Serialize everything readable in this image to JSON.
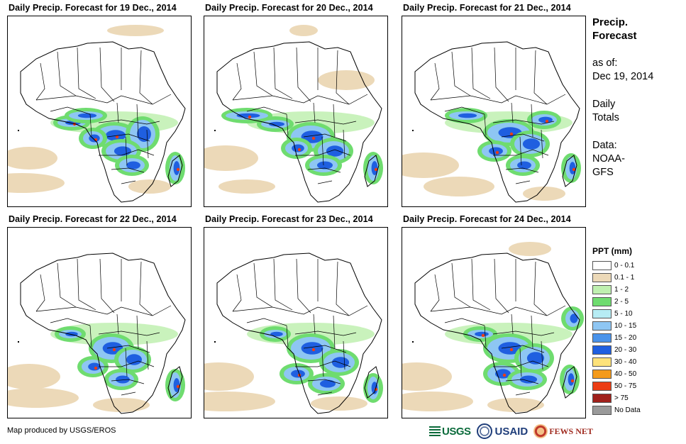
{
  "panels": [
    {
      "title": "Daily Precip. Forecast for 19 Dec., 2014"
    },
    {
      "title": "Daily Precip. Forecast for 20 Dec., 2014"
    },
    {
      "title": "Daily Precip. Forecast for 21 Dec., 2014"
    },
    {
      "title": "Daily Precip. Forecast for 22 Dec., 2014"
    },
    {
      "title": "Daily Precip. Forecast for 23 Dec., 2014"
    },
    {
      "title": "Daily Precip. Forecast for 24 Dec., 2014"
    }
  ],
  "sidebar": {
    "title_line1": "Precip.",
    "title_line2": "Forecast",
    "asof_label": "as of:",
    "asof_date": "Dec 19, 2014",
    "totals_line1": "Daily",
    "totals_line2": "Totals",
    "data_line1": "Data:",
    "data_line2": "NOAA-",
    "data_line3": "GFS"
  },
  "legend": {
    "title": "PPT (mm)",
    "items": [
      {
        "label": "0 - 0.1",
        "color": "#ffffff"
      },
      {
        "label": "0.1 - 1",
        "color": "#ecd9b8"
      },
      {
        "label": "1 - 2",
        "color": "#bff0b0"
      },
      {
        "label": "2 - 5",
        "color": "#6fdc6f"
      },
      {
        "label": "5 - 10",
        "color": "#b6ecf4"
      },
      {
        "label": "10 - 15",
        "color": "#8ec6f3"
      },
      {
        "label": "15 - 20",
        "color": "#4a93ea"
      },
      {
        "label": "20 - 30",
        "color": "#1f5fe0"
      },
      {
        "label": "30 - 40",
        "color": "#fde27a"
      },
      {
        "label": "40 - 50",
        "color": "#f49a1a"
      },
      {
        "label": "50 - 75",
        "color": "#ec3d14"
      },
      {
        "label": "> 75",
        "color": "#a0201b"
      },
      {
        "label": "No Data",
        "color": "#9a9a9a"
      }
    ]
  },
  "footer": {
    "credit": "Map produced by USGS/EROS",
    "logo_usgs": "USGS",
    "logo_usaid": "USAID",
    "logo_fews": "FEWS NET"
  }
}
